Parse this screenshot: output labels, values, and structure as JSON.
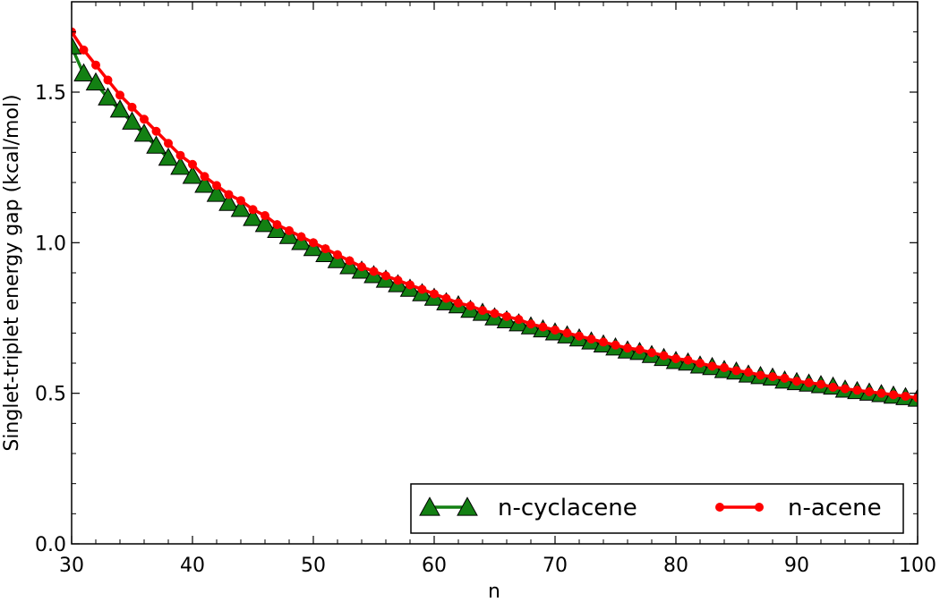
{
  "chart_data": {
    "type": "line",
    "title": "",
    "xlabel": "n",
    "ylabel": "Singlet-triplet energy gap (kcal/mol)",
    "xlim": [
      30,
      100
    ],
    "ylim": [
      0.0,
      1.8
    ],
    "xticks": [
      30,
      40,
      50,
      60,
      70,
      80,
      90,
      100
    ],
    "yticks": [
      0.0,
      0.5,
      1.0,
      1.5
    ],
    "xtick_labels": [
      "30",
      "40",
      "50",
      "60",
      "70",
      "80",
      "90",
      "100"
    ],
    "ytick_labels": [
      "0.0",
      "0.5",
      "1.0",
      "1.5"
    ],
    "grid": false,
    "legend_position": "bottom-right",
    "series": [
      {
        "name": "n-cyclacene",
        "color": "#138013",
        "marker": "triangle",
        "x": [
          30,
          31,
          32,
          33,
          34,
          35,
          36,
          37,
          38,
          39,
          40,
          41,
          42,
          43,
          44,
          45,
          46,
          47,
          48,
          49,
          50,
          51,
          52,
          53,
          54,
          55,
          56,
          57,
          58,
          59,
          60,
          61,
          62,
          63,
          64,
          65,
          66,
          67,
          68,
          69,
          70,
          71,
          72,
          73,
          74,
          75,
          76,
          77,
          78,
          79,
          80,
          81,
          82,
          83,
          84,
          85,
          86,
          87,
          88,
          89,
          90,
          91,
          92,
          93,
          94,
          95,
          96,
          97,
          98,
          99,
          100
        ],
        "values": [
          1.65,
          1.56,
          1.53,
          1.48,
          1.44,
          1.4,
          1.36,
          1.32,
          1.28,
          1.25,
          1.22,
          1.19,
          1.16,
          1.13,
          1.11,
          1.08,
          1.06,
          1.04,
          1.02,
          1.0,
          0.98,
          0.96,
          0.94,
          0.92,
          0.905,
          0.89,
          0.875,
          0.86,
          0.845,
          0.83,
          0.815,
          0.8,
          0.79,
          0.775,
          0.765,
          0.75,
          0.74,
          0.73,
          0.72,
          0.71,
          0.7,
          0.69,
          0.68,
          0.67,
          0.66,
          0.65,
          0.64,
          0.635,
          0.625,
          0.615,
          0.605,
          0.6,
          0.59,
          0.585,
          0.575,
          0.57,
          0.56,
          0.555,
          0.55,
          0.54,
          0.535,
          0.53,
          0.525,
          0.52,
          0.51,
          0.505,
          0.5,
          0.495,
          0.49,
          0.485,
          0.48
        ]
      },
      {
        "name": "n-acene",
        "color": "#ff0000",
        "marker": "circle",
        "x": [
          30,
          31,
          32,
          33,
          34,
          35,
          36,
          37,
          38,
          39,
          40,
          41,
          42,
          43,
          44,
          45,
          46,
          47,
          48,
          49,
          50,
          51,
          52,
          53,
          54,
          55,
          56,
          57,
          58,
          59,
          60,
          61,
          62,
          63,
          64,
          65,
          66,
          67,
          68,
          69,
          70,
          71,
          72,
          73,
          74,
          75,
          76,
          77,
          78,
          79,
          80,
          81,
          82,
          83,
          84,
          85,
          86,
          87,
          88,
          89,
          90,
          91,
          92,
          93,
          94,
          95,
          96,
          97,
          98,
          99,
          100
        ],
        "values": [
          1.7,
          1.64,
          1.59,
          1.54,
          1.49,
          1.45,
          1.41,
          1.37,
          1.33,
          1.29,
          1.26,
          1.22,
          1.19,
          1.16,
          1.14,
          1.11,
          1.09,
          1.06,
          1.04,
          1.02,
          1.0,
          0.98,
          0.96,
          0.94,
          0.92,
          0.905,
          0.89,
          0.875,
          0.86,
          0.845,
          0.83,
          0.815,
          0.8,
          0.79,
          0.775,
          0.765,
          0.755,
          0.745,
          0.73,
          0.72,
          0.71,
          0.7,
          0.69,
          0.68,
          0.67,
          0.66,
          0.65,
          0.645,
          0.635,
          0.625,
          0.615,
          0.61,
          0.6,
          0.59,
          0.585,
          0.575,
          0.57,
          0.56,
          0.555,
          0.55,
          0.54,
          0.535,
          0.53,
          0.52,
          0.515,
          0.51,
          0.505,
          0.5,
          0.495,
          0.49,
          0.485
        ]
      }
    ]
  }
}
